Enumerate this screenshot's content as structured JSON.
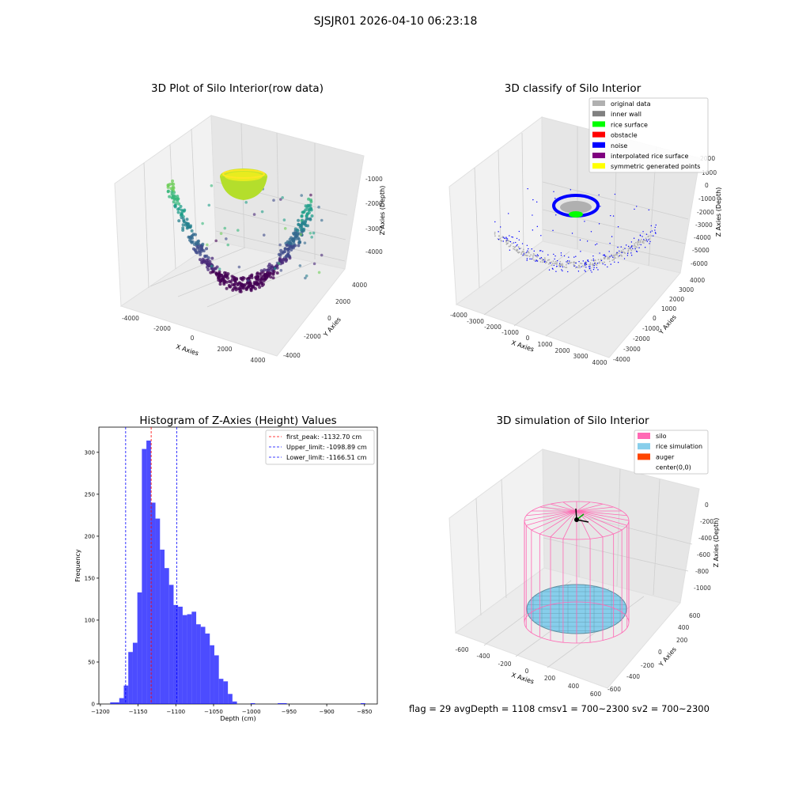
{
  "suptitle": "SJSJR01 2026-04-10 06:23:18",
  "footer": "flag = 29  avgDepth = 1108 cmsv1 = 700~2300  sv2 = 700~2300",
  "colors": {
    "bar": "#0000ff",
    "first_peak_line": "#ff0000",
    "limit_lines": "#0000ff",
    "silo": "#ff69b4",
    "rice": "#87ceeb",
    "auger": "#ff4500"
  },
  "plot3d_raw": {
    "title": "3D Plot of Silo Interior(row data)",
    "xlabel": "X Axies",
    "ylabel": "Y Axies",
    "zlabel": "Z Axies (Depth)",
    "x_ticks": [
      "-4000",
      "-2000",
      "0",
      "2000",
      "4000"
    ],
    "y_ticks": [
      "-4000",
      "-2000",
      "0",
      "2000",
      "4000"
    ],
    "z_ticks": [
      "-1000",
      "-2000",
      "-3000",
      "-4000"
    ]
  },
  "plot3d_classify": {
    "title": "3D classify of Silo Interior",
    "xlabel": "X Axies",
    "ylabel": "Y Axies",
    "zlabel": "Z Axies (Depth)",
    "x_ticks": [
      "-4000",
      "-3000",
      "-2000",
      "-1000",
      "0",
      "1000",
      "2000",
      "3000",
      "4000"
    ],
    "y_ticks": [
      "-4000",
      "-3000",
      "-2000",
      "-1000",
      "0",
      "1000",
      "2000",
      "3000",
      "4000"
    ],
    "z_ticks": [
      "1000",
      "0",
      "-1000",
      "-2000",
      "-3000",
      "-4000",
      "-5000",
      "-6000"
    ],
    "partial_z_tick": "2000",
    "legend": [
      {
        "label": "original data",
        "color": "#b0b0b0"
      },
      {
        "label": "inner wall",
        "color": "#808080"
      },
      {
        "label": "rice surface",
        "color": "#00ff00"
      },
      {
        "label": "obstacle",
        "color": "#ff0000"
      },
      {
        "label": "noise",
        "color": "#0000ff"
      },
      {
        "label": "interpolated rice surface",
        "color": "#800080"
      },
      {
        "label": "symmetric generated points",
        "color": "#ffff00"
      }
    ]
  },
  "plot3d_sim": {
    "title": "3D simulation of Silo Interior",
    "xlabel": "X Axies",
    "ylabel": "Y Axies",
    "zlabel": "Z Axies (Depth)",
    "x_ticks": [
      "-600",
      "-400",
      "-200",
      "0",
      "200",
      "400",
      "600"
    ],
    "y_ticks": [
      "-600",
      "-400",
      "-200",
      "0",
      "200",
      "400",
      "600"
    ],
    "z_ticks": [
      "0",
      "-200",
      "-400",
      "-600",
      "-800",
      "-1000"
    ],
    "legend": [
      {
        "label": "silo",
        "color": "#ff69b4"
      },
      {
        "label": "rice simulation",
        "color": "#87ceeb"
      },
      {
        "label": "auger",
        "color": "#ff4500"
      },
      {
        "label": "center(0,0)",
        "color": ""
      }
    ]
  },
  "chart_data": {
    "type": "bar",
    "title": "Histogram of Z-Axies (Height) Values",
    "xlabel": "Depth (cm)",
    "ylabel": "Frequency",
    "xlim": [
      -1202,
      -833
    ],
    "ylim": [
      0,
      330
    ],
    "x_ticks": [
      -1200,
      -1150,
      -1100,
      -1050,
      -1000,
      -950,
      -900,
      -850
    ],
    "y_ticks": [
      0,
      50,
      100,
      150,
      200,
      250,
      300
    ],
    "bins": [
      {
        "x0": -1187,
        "x1": -1181,
        "value": 2
      },
      {
        "x0": -1181,
        "x1": -1175,
        "value": 2
      },
      {
        "x0": -1175,
        "x1": -1169,
        "value": 7
      },
      {
        "x0": -1169,
        "x1": -1163,
        "value": 22
      },
      {
        "x0": -1163,
        "x1": -1157,
        "value": 62
      },
      {
        "x0": -1157,
        "x1": -1151,
        "value": 73
      },
      {
        "x0": -1151,
        "x1": -1145,
        "value": 133
      },
      {
        "x0": -1145,
        "x1": -1139,
        "value": 304
      },
      {
        "x0": -1139,
        "x1": -1133,
        "value": 314
      },
      {
        "x0": -1133,
        "x1": -1127,
        "value": 240
      },
      {
        "x0": -1127,
        "x1": -1121,
        "value": 221
      },
      {
        "x0": -1121,
        "x1": -1115,
        "value": 184
      },
      {
        "x0": -1115,
        "x1": -1109,
        "value": 162
      },
      {
        "x0": -1109,
        "x1": -1103,
        "value": 142
      },
      {
        "x0": -1103,
        "x1": -1097,
        "value": 118
      },
      {
        "x0": -1097,
        "x1": -1091,
        "value": 116
      },
      {
        "x0": -1091,
        "x1": -1085,
        "value": 106
      },
      {
        "x0": -1085,
        "x1": -1079,
        "value": 107
      },
      {
        "x0": -1079,
        "x1": -1073,
        "value": 110
      },
      {
        "x0": -1073,
        "x1": -1067,
        "value": 95
      },
      {
        "x0": -1067,
        "x1": -1061,
        "value": 92
      },
      {
        "x0": -1061,
        "x1": -1055,
        "value": 84
      },
      {
        "x0": -1055,
        "x1": -1049,
        "value": 70
      },
      {
        "x0": -1049,
        "x1": -1043,
        "value": 58
      },
      {
        "x0": -1043,
        "x1": -1037,
        "value": 30
      },
      {
        "x0": -1037,
        "x1": -1031,
        "value": 27
      },
      {
        "x0": -1031,
        "x1": -1025,
        "value": 12
      },
      {
        "x0": -1025,
        "x1": -1019,
        "value": 3
      },
      {
        "x0": -1001,
        "x1": -995,
        "value": 1
      },
      {
        "x0": -965,
        "x1": -953,
        "value": 1
      },
      {
        "x0": -855,
        "x1": -849,
        "value": 1
      }
    ],
    "lines": [
      {
        "label": "first_peak: -1132.70 cm",
        "x": -1132.7,
        "color": "#ff0000"
      },
      {
        "label": "Upper_limit: -1098.89 cm",
        "x": -1098.89,
        "color": "#0000ff"
      },
      {
        "label": "Lower_limit: -1166.51 cm",
        "x": -1166.51,
        "color": "#0000ff"
      }
    ],
    "legend_position": "upper right",
    "grid": false
  }
}
